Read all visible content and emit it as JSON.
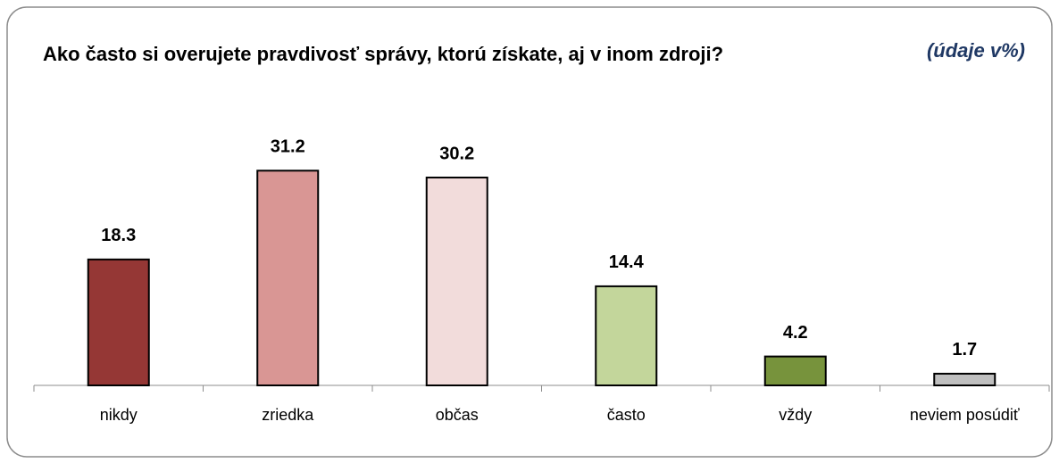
{
  "chart_data": {
    "type": "bar",
    "title": "Ako často si overujete pravdivosť správy, ktorú získate, aj v inom zdroji?",
    "subtitle": "(údaje v%)",
    "categories": [
      "nikdy",
      "zriedka",
      "občas",
      "často",
      "vždy",
      "neviem posúdiť"
    ],
    "values": [
      18.3,
      31.2,
      30.2,
      14.4,
      4.2,
      1.7
    ],
    "colors": [
      "#953735",
      "#d99694",
      "#f2dcdb",
      "#c3d69b",
      "#77933c",
      "#bfbfbf"
    ],
    "ylim": [
      0,
      35
    ]
  }
}
